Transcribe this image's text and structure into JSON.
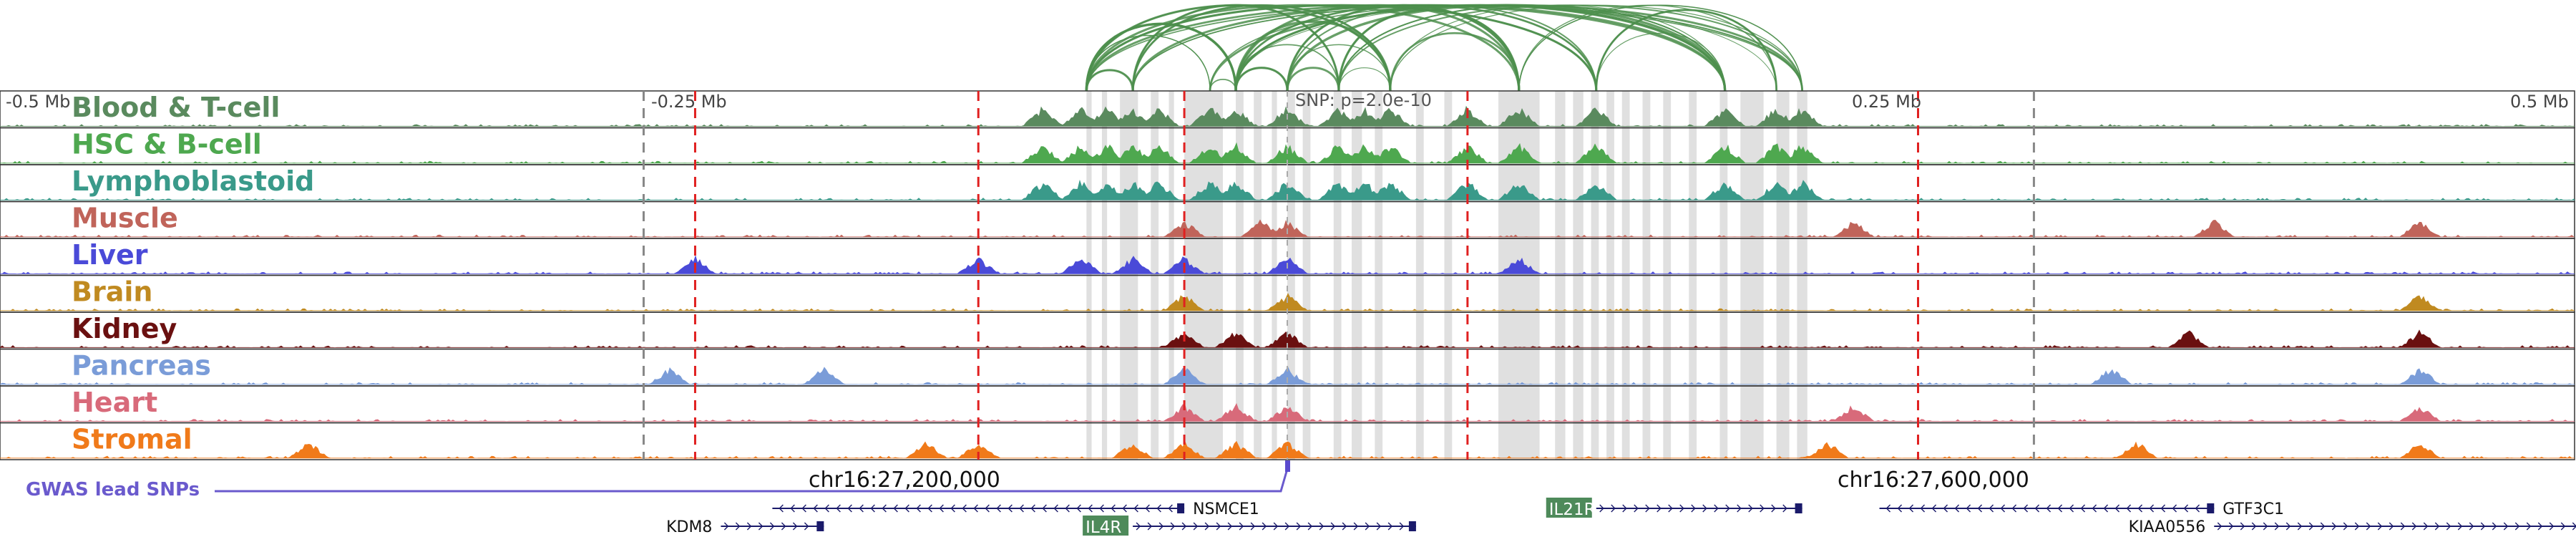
{
  "chart_data": {
    "type": "area",
    "title": "",
    "region": {
      "center_label": "SNP: p=2.0e-10",
      "axis_ticks": [
        "-0.5 Mb",
        "-0.25 Mb",
        "0.25 Mb",
        "0.5 Mb"
      ],
      "coordinate_labels": [
        "chr16:27,200,000",
        "chr16:27,600,000"
      ],
      "x_range_mb": [
        -0.5,
        0.5
      ]
    },
    "tracks": [
      {
        "name": "Blood & T-cell",
        "color": "#5a8a5e"
      },
      {
        "name": "HSC & B-cell",
        "color": "#4ea84f"
      },
      {
        "name": "Lymphoblastoid",
        "color": "#3a9a8a"
      },
      {
        "name": "Muscle",
        "color": "#c0645a"
      },
      {
        "name": "Liver",
        "color": "#4a4ad8"
      },
      {
        "name": "Brain",
        "color": "#c08a20"
      },
      {
        "name": "Kidney",
        "color": "#6a1010"
      },
      {
        "name": "Pancreas",
        "color": "#7a9cd8"
      },
      {
        "name": "Heart",
        "color": "#d86a7a"
      },
      {
        "name": "Stromal",
        "color": "#f07a1a"
      }
    ],
    "gwas_label": "GWAS lead SNPs",
    "genes": [
      {
        "name": "NSMCE1",
        "start": -0.2,
        "end": -0.04,
        "strand": "-",
        "highlight": false
      },
      {
        "name": "KDM8",
        "start": -0.22,
        "end": -0.18,
        "strand": "+",
        "highlight": false
      },
      {
        "name": "IL4R",
        "start": -0.06,
        "end": 0.05,
        "strand": "+",
        "highlight": true
      },
      {
        "name": "IL21R",
        "start": 0.12,
        "end": 0.2,
        "strand": "+",
        "highlight": true
      },
      {
        "name": "GTF3C1",
        "start": 0.23,
        "end": 0.36,
        "strand": "-",
        "highlight": false
      },
      {
        "name": "KIAA0556",
        "start": 0.36,
        "end": 0.64,
        "strand": "+",
        "highlight": false
      }
    ],
    "red_dashed_lines_mb": [
      -0.23,
      -0.12,
      -0.04,
      0.07,
      0.245
    ],
    "grey_dashed_lines_mb": [
      -0.25,
      0.29
    ],
    "grey_bands_mb": [
      [
        -0.078,
        -0.076
      ],
      [
        -0.072,
        -0.07
      ],
      [
        -0.065,
        -0.058
      ],
      [
        -0.053,
        -0.05
      ],
      [
        -0.046,
        -0.044
      ],
      [
        -0.04,
        -0.025
      ],
      [
        -0.02,
        -0.017
      ],
      [
        -0.013,
        -0.01
      ],
      [
        -0.006,
        -0.004
      ],
      [
        0.0,
        0.003
      ],
      [
        0.006,
        0.009
      ],
      [
        0.018,
        0.021
      ],
      [
        0.025,
        0.029
      ],
      [
        0.034,
        0.037
      ],
      [
        0.05,
        0.053
      ],
      [
        0.061,
        0.064
      ],
      [
        0.082,
        0.098
      ],
      [
        0.104,
        0.108
      ],
      [
        0.111,
        0.115
      ],
      [
        0.118,
        0.121
      ],
      [
        0.124,
        0.127
      ],
      [
        0.13,
        0.133
      ],
      [
        0.138,
        0.141
      ],
      [
        0.146,
        0.149
      ],
      [
        0.156,
        0.159
      ],
      [
        0.168,
        0.171
      ],
      [
        0.176,
        0.185
      ],
      [
        0.19,
        0.195
      ],
      [
        0.198,
        0.202
      ]
    ]
  }
}
